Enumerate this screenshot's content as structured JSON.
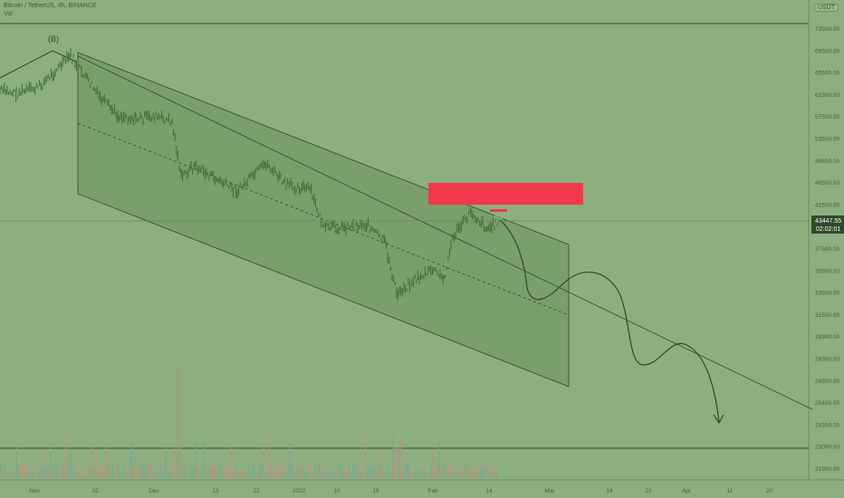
{
  "header": {
    "symbol_line": "Bitcoin / TetherUS, 4h, BINANCE",
    "vol_label": "Vol",
    "currency": "USDT"
  },
  "colors": {
    "background": "#8daf7f",
    "channel_fill": "#7a9e6c",
    "candles": "#3d6b34",
    "resistance_box": "#f2384b",
    "price_label_bg": "#2f4a2a",
    "projection": "#2f4a2a"
  },
  "chart_data": {
    "type": "candlestick",
    "title": "",
    "xlabel": "",
    "ylabel": "",
    "x_ticks": [
      "Nov",
      "15",
      "Dec",
      "13",
      "22",
      "2022",
      "10",
      "19",
      "Feb",
      "14",
      "Mar",
      "14",
      "23",
      "Apr",
      "11",
      "20"
    ],
    "y_ticks": [
      73500,
      69500,
      65500,
      61500,
      57500,
      53500,
      49500,
      46500,
      41500,
      39500,
      37500,
      35500,
      33500,
      31500,
      29900,
      28300,
      26800,
      25400,
      24300,
      23000,
      21900
    ],
    "ylim": [
      21900,
      73500
    ],
    "last_price": {
      "value": "43447.55",
      "countdown": "02:02:01"
    },
    "annotations": [
      {
        "label": "(B)",
        "type": "wave-label",
        "date": "Nov 9",
        "price": 69000
      }
    ],
    "resistance_zone": {
      "price_low": 45500,
      "price_high": 48400,
      "from": "Feb 4",
      "to": "Feb 22"
    },
    "price_series": [
      {
        "date": "Oct 25",
        "price": 62000
      },
      {
        "date": "Oct 30",
        "price": 61500
      },
      {
        "date": "Nov 4",
        "price": 62500
      },
      {
        "date": "Nov 9",
        "price": 68500
      },
      {
        "date": "Nov 12",
        "price": 65500
      },
      {
        "date": "Nov 16",
        "price": 60500
      },
      {
        "date": "Nov 20",
        "price": 58000
      },
      {
        "date": "Nov 24",
        "price": 57500
      },
      {
        "date": "Nov 28",
        "price": 57800
      },
      {
        "date": "Dec 1",
        "price": 57000
      },
      {
        "date": "Dec 4",
        "price": 49000
      },
      {
        "date": "Dec 8",
        "price": 50500
      },
      {
        "date": "Dec 13",
        "price": 48500
      },
      {
        "date": "Dec 18",
        "price": 47000
      },
      {
        "date": "Dec 23",
        "price": 50800
      },
      {
        "date": "Dec 28",
        "price": 47800
      },
      {
        "date": "Jan 2",
        "price": 47300
      },
      {
        "date": "Jan 6",
        "price": 42500
      },
      {
        "date": "Jan 11",
        "price": 42800
      },
      {
        "date": "Jan 16",
        "price": 43000
      },
      {
        "date": "Jan 20",
        "price": 41000
      },
      {
        "date": "Jan 22",
        "price": 35500
      },
      {
        "date": "Jan 26",
        "price": 36800
      },
      {
        "date": "Jan 31",
        "price": 38000
      },
      {
        "date": "Feb 3",
        "price": 37000
      },
      {
        "date": "Feb 6",
        "price": 41500
      },
      {
        "date": "Feb 10",
        "price": 44500
      },
      {
        "date": "Feb 14",
        "price": 42500
      },
      {
        "date": "Feb 18",
        "price": 43400
      }
    ]
  }
}
